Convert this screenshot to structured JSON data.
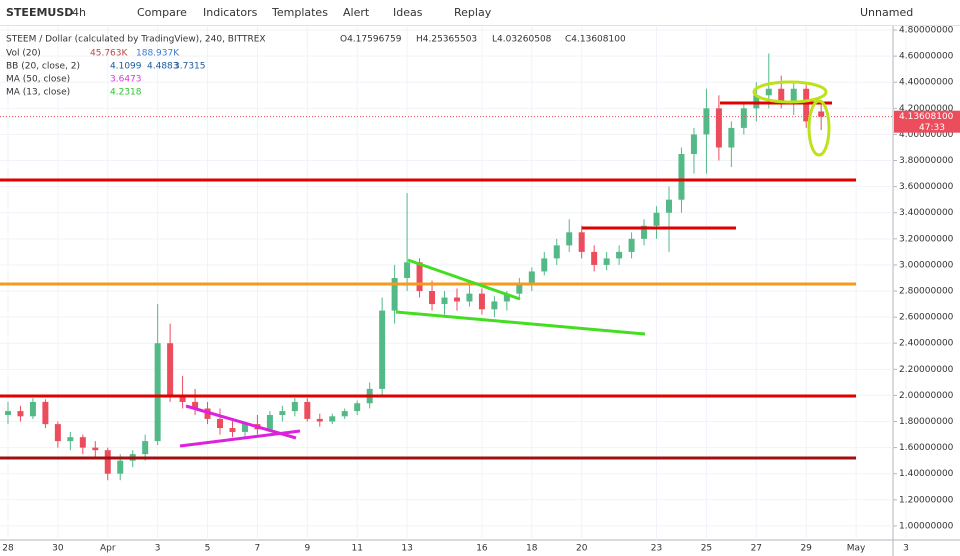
{
  "toolbar": {
    "symbol": "STEEMUSD",
    "interval": "4h",
    "compare": "Compare",
    "indicators": "Indicators",
    "templates": "Templates",
    "alert": "Alert",
    "ideas": "Ideas",
    "replay": "Replay",
    "layout": "Unnamed"
  },
  "legend": {
    "title": "STEEM / Dollar (calculated by TradingView), 240, BITTREX",
    "open": "O4.17596759",
    "high": "H4.25365503",
    "low": "L4.03260508",
    "close": "C4.13608100",
    "vol": {
      "name": "Vol (20)",
      "values": [
        "45.763K",
        "188.937K"
      ]
    },
    "bb": {
      "name": "BB (20, close, 2)",
      "values": [
        "4.1099",
        "4.4883",
        "3.7315"
      ]
    },
    "ma50": {
      "name": "MA (50, close)",
      "values": [
        "3.6473"
      ]
    },
    "ma13": {
      "name": "MA (13, close)",
      "values": [
        "4.2318"
      ]
    }
  },
  "chart": {
    "type": "candlestick",
    "up_color": "#53b987",
    "down_color": "#eb4d5c",
    "x": [
      0,
      0.5,
      1,
      1.5,
      2,
      2.5,
      3,
      3.5,
      4,
      4.5,
      5,
      5.5,
      6,
      6.5,
      7,
      7.5,
      8,
      8.5,
      9,
      9.5,
      10,
      10.5,
      11,
      11.5,
      12,
      12.5,
      13,
      13.5,
      14,
      14.5,
      15,
      15.5,
      16,
      16.5,
      17,
      17.5,
      18,
      18.5,
      19,
      19.5,
      20,
      20.5,
      21,
      21.5,
      22,
      22.5,
      23,
      23.5,
      24,
      24.5,
      25,
      25.5,
      26,
      26.5,
      27,
      27.5,
      28,
      28.5,
      29,
      29.5,
      30,
      30.5,
      31,
      31.5,
      32,
      32.6
    ],
    "open": [
      1.85,
      1.88,
      1.84,
      1.95,
      1.78,
      1.65,
      1.68,
      1.6,
      1.58,
      1.4,
      1.5,
      1.55,
      1.65,
      2.4,
      2.0,
      1.95,
      1.9,
      1.82,
      1.75,
      1.72,
      1.78,
      1.74,
      1.85,
      1.88,
      1.95,
      1.82,
      1.8,
      1.84,
      1.88,
      1.94,
      2.05,
      2.65,
      2.9,
      3.02,
      2.8,
      2.7,
      2.75,
      2.72,
      2.78,
      2.66,
      2.72,
      2.78,
      2.85,
      2.95,
      3.05,
      3.15,
      3.25,
      3.1,
      3.0,
      3.05,
      3.1,
      3.2,
      3.3,
      3.4,
      3.5,
      3.85,
      4.0,
      4.2,
      3.9,
      4.05,
      4.2,
      4.3,
      4.35,
      4.25,
      4.35,
      4.176
    ],
    "high": [
      1.95,
      1.92,
      1.98,
      1.97,
      1.8,
      1.72,
      1.7,
      1.65,
      1.6,
      1.55,
      1.58,
      1.7,
      2.7,
      2.55,
      2.15,
      2.05,
      1.95,
      1.9,
      1.82,
      1.8,
      1.85,
      1.88,
      1.92,
      1.98,
      1.98,
      1.86,
      1.86,
      1.9,
      1.96,
      2.1,
      2.75,
      3.0,
      3.55,
      3.05,
      2.88,
      2.8,
      2.82,
      2.85,
      2.82,
      2.76,
      2.8,
      2.9,
      2.98,
      3.1,
      3.2,
      3.35,
      3.3,
      3.15,
      3.1,
      3.15,
      3.25,
      3.35,
      3.45,
      3.6,
      3.9,
      4.05,
      4.35,
      4.3,
      4.1,
      4.25,
      4.4,
      4.62,
      4.45,
      4.4,
      4.38,
      4.254
    ],
    "low": [
      1.78,
      1.8,
      1.82,
      1.75,
      1.6,
      1.58,
      1.55,
      1.52,
      1.35,
      1.35,
      1.45,
      1.5,
      1.62,
      1.95,
      1.9,
      1.85,
      1.78,
      1.7,
      1.68,
      1.68,
      1.7,
      1.72,
      1.8,
      1.84,
      1.8,
      1.76,
      1.78,
      1.82,
      1.85,
      1.9,
      2.0,
      2.55,
      2.8,
      2.75,
      2.65,
      2.62,
      2.65,
      2.68,
      2.62,
      2.6,
      2.65,
      2.74,
      2.8,
      2.92,
      3.0,
      3.1,
      3.05,
      2.95,
      2.96,
      3.0,
      3.05,
      3.15,
      3.2,
      3.1,
      3.4,
      3.7,
      3.7,
      3.8,
      3.75,
      4.0,
      4.1,
      4.2,
      4.2,
      4.15,
      4.05,
      4.033
    ],
    "close": [
      1.88,
      1.84,
      1.95,
      1.78,
      1.65,
      1.68,
      1.6,
      1.58,
      1.4,
      1.5,
      1.55,
      1.65,
      2.4,
      2.0,
      1.95,
      1.9,
      1.82,
      1.75,
      1.72,
      1.78,
      1.74,
      1.85,
      1.88,
      1.95,
      1.82,
      1.8,
      1.84,
      1.88,
      1.94,
      2.05,
      2.65,
      2.9,
      3.02,
      2.8,
      2.7,
      2.75,
      2.72,
      2.78,
      2.66,
      2.72,
      2.78,
      2.85,
      2.95,
      3.05,
      3.15,
      3.25,
      3.1,
      3.0,
      3.05,
      3.1,
      3.2,
      3.3,
      3.4,
      3.5,
      3.85,
      4.0,
      4.2,
      3.9,
      4.05,
      4.2,
      4.3,
      4.35,
      4.25,
      4.35,
      4.1,
      4.136
    ],
    "xlim": [
      -0.32,
      35.48
    ],
    "xticks": [
      {
        "value": 0,
        "label": "28"
      },
      {
        "value": 2,
        "label": "30"
      },
      {
        "value": 4,
        "label": "Apr"
      },
      {
        "value": 6,
        "label": "3"
      },
      {
        "value": 8,
        "label": "5"
      },
      {
        "value": 10,
        "label": "7"
      },
      {
        "value": 12,
        "label": "9"
      },
      {
        "value": 14,
        "label": "11"
      },
      {
        "value": 16,
        "label": "13"
      },
      {
        "value": 19,
        "label": "16"
      },
      {
        "value": 21,
        "label": "18"
      },
      {
        "value": 23,
        "label": "20"
      },
      {
        "value": 26,
        "label": "23"
      },
      {
        "value": 28,
        "label": "25"
      },
      {
        "value": 30,
        "label": "27"
      },
      {
        "value": 32,
        "label": "29"
      },
      {
        "value": 34,
        "label": "May"
      },
      {
        "value": 36,
        "label": "3"
      }
    ],
    "ylim": [
      0.892,
      4.831
    ],
    "yticks": [
      {
        "value": 4.8,
        "label": "4.80000000"
      },
      {
        "value": 4.6,
        "label": "4.60000000"
      },
      {
        "value": 4.4,
        "label": "4.40000000"
      },
      {
        "value": 4.2,
        "label": "4.20000000"
      },
      {
        "value": 4.0,
        "label": "4.00000000"
      },
      {
        "value": 3.8,
        "label": "3.80000000"
      },
      {
        "value": 3.6,
        "label": "3.60000000"
      },
      {
        "value": 3.4,
        "label": "3.40000000"
      },
      {
        "value": 3.2,
        "label": "3.20000000"
      },
      {
        "value": 3.0,
        "label": "3.00000000"
      },
      {
        "value": 2.8,
        "label": "2.80000000"
      },
      {
        "value": 2.6,
        "label": "2.60000000"
      },
      {
        "value": 2.4,
        "label": "2.40000000"
      },
      {
        "value": 2.2,
        "label": "2.20000000"
      },
      {
        "value": 2.0,
        "label": "2.00000000"
      },
      {
        "value": 1.8,
        "label": "1.80000000"
      },
      {
        "value": 1.6,
        "label": "1.60000000"
      },
      {
        "value": 1.4,
        "label": "1.40000000"
      },
      {
        "value": 1.2,
        "label": "1.20000000"
      },
      {
        "value": 1.0,
        "label": "1.00000000"
      }
    ],
    "last_price": {
      "value": 4.136081,
      "label": "4.13608100"
    },
    "countdown": "47:33"
  }
}
